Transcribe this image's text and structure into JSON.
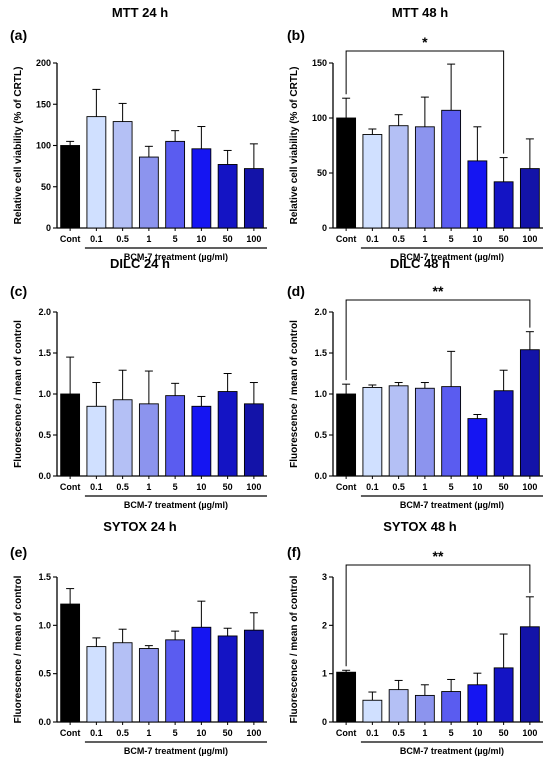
{
  "x_axis": {
    "categories": [
      "Cont",
      "0.1",
      "0.5",
      "1",
      "5",
      "10",
      "50",
      "100"
    ],
    "treatment_label": "BCM-7 treatment (µg/ml)"
  },
  "colors": {
    "bars": [
      "#000000",
      "#d0e0ff",
      "#b4c0f5",
      "#8c94ee",
      "#5a5cf0",
      "#1515f2",
      "#1414c4",
      "#1313a8"
    ],
    "axis": "#000000"
  },
  "chart_data": [
    {
      "type": "bar",
      "letter": "(a)",
      "title": "MTT 24 h",
      "ylabel": "Relative cell viability (% of CRTL)",
      "ylim": [
        0,
        200
      ],
      "yticks": [
        "0",
        "50",
        "100",
        "150",
        "200"
      ],
      "yticks_values": [
        0,
        50,
        100,
        150,
        200
      ],
      "values": [
        100,
        135,
        129,
        86,
        105,
        96,
        77,
        72
      ],
      "errors": [
        5,
        33,
        22,
        13,
        13,
        27,
        17,
        30
      ],
      "significance": null
    },
    {
      "type": "bar",
      "letter": "(b)",
      "title": "MTT 48 h",
      "ylabel": "Relative cell viability (% of CRTL)",
      "ylim": [
        0,
        150
      ],
      "yticks": [
        "0",
        "50",
        "100",
        "150"
      ],
      "yticks_values": [
        0,
        50,
        100,
        150
      ],
      "values": [
        100,
        85,
        93,
        92,
        107,
        61,
        42,
        54
      ],
      "errors": [
        18,
        5,
        10,
        27,
        42,
        31,
        22,
        27
      ],
      "significance": {
        "label": "*",
        "from": 0,
        "to": 6
      }
    },
    {
      "type": "bar",
      "letter": "(c)",
      "title": "DILC 24 h",
      "ylabel": "Fluorescence / mean of control",
      "ylim": [
        0,
        2.0
      ],
      "yticks": [
        "0.0",
        "0.5",
        "1.0",
        "1.5",
        "2.0"
      ],
      "yticks_values": [
        0,
        0.5,
        1.0,
        1.5,
        2.0
      ],
      "values": [
        1.0,
        0.85,
        0.93,
        0.88,
        0.98,
        0.85,
        1.03,
        0.88
      ],
      "errors": [
        0.45,
        0.29,
        0.36,
        0.4,
        0.15,
        0.12,
        0.22,
        0.26
      ],
      "significance": null
    },
    {
      "type": "bar",
      "letter": "(d)",
      "title": "DILC 48 h",
      "ylabel": "Fluorescence / mean of control",
      "ylim": [
        0,
        2.0
      ],
      "yticks": [
        "0.0",
        "0.5",
        "1.0",
        "1.5",
        "2.0"
      ],
      "yticks_values": [
        0,
        0.5,
        1.0,
        1.5,
        2.0
      ],
      "values": [
        1.0,
        1.08,
        1.1,
        1.07,
        1.09,
        0.7,
        1.04,
        1.54
      ],
      "errors": [
        0.12,
        0.03,
        0.04,
        0.07,
        0.43,
        0.05,
        0.25,
        0.22
      ],
      "significance": {
        "label": "**",
        "from": 0,
        "to": 7
      }
    },
    {
      "type": "bar",
      "letter": "(e)",
      "title": "SYTOX 24 h",
      "ylabel": "Fluorescence / mean of control",
      "ylim": [
        0,
        1.5
      ],
      "yticks": [
        "0.0",
        "0.5",
        "1.0",
        "1.5"
      ],
      "yticks_values": [
        0,
        0.5,
        1.0,
        1.5
      ],
      "values": [
        1.22,
        0.78,
        0.82,
        0.76,
        0.85,
        0.98,
        0.89,
        0.95
      ],
      "errors": [
        0.16,
        0.09,
        0.14,
        0.03,
        0.09,
        0.27,
        0.08,
        0.18
      ],
      "significance": null
    },
    {
      "type": "bar",
      "letter": "(f)",
      "title": "SYTOX 48 h",
      "ylabel": "Fluorescence / mean of control",
      "ylim": [
        0,
        3
      ],
      "yticks": [
        "0",
        "1",
        "2",
        "3"
      ],
      "yticks_values": [
        0,
        1,
        2,
        3
      ],
      "values": [
        1.03,
        0.45,
        0.67,
        0.55,
        0.63,
        0.77,
        1.12,
        1.97
      ],
      "errors": [
        0.04,
        0.17,
        0.19,
        0.22,
        0.25,
        0.24,
        0.7,
        0.62
      ],
      "significance": {
        "label": "**",
        "from": 0,
        "to": 7
      }
    }
  ]
}
